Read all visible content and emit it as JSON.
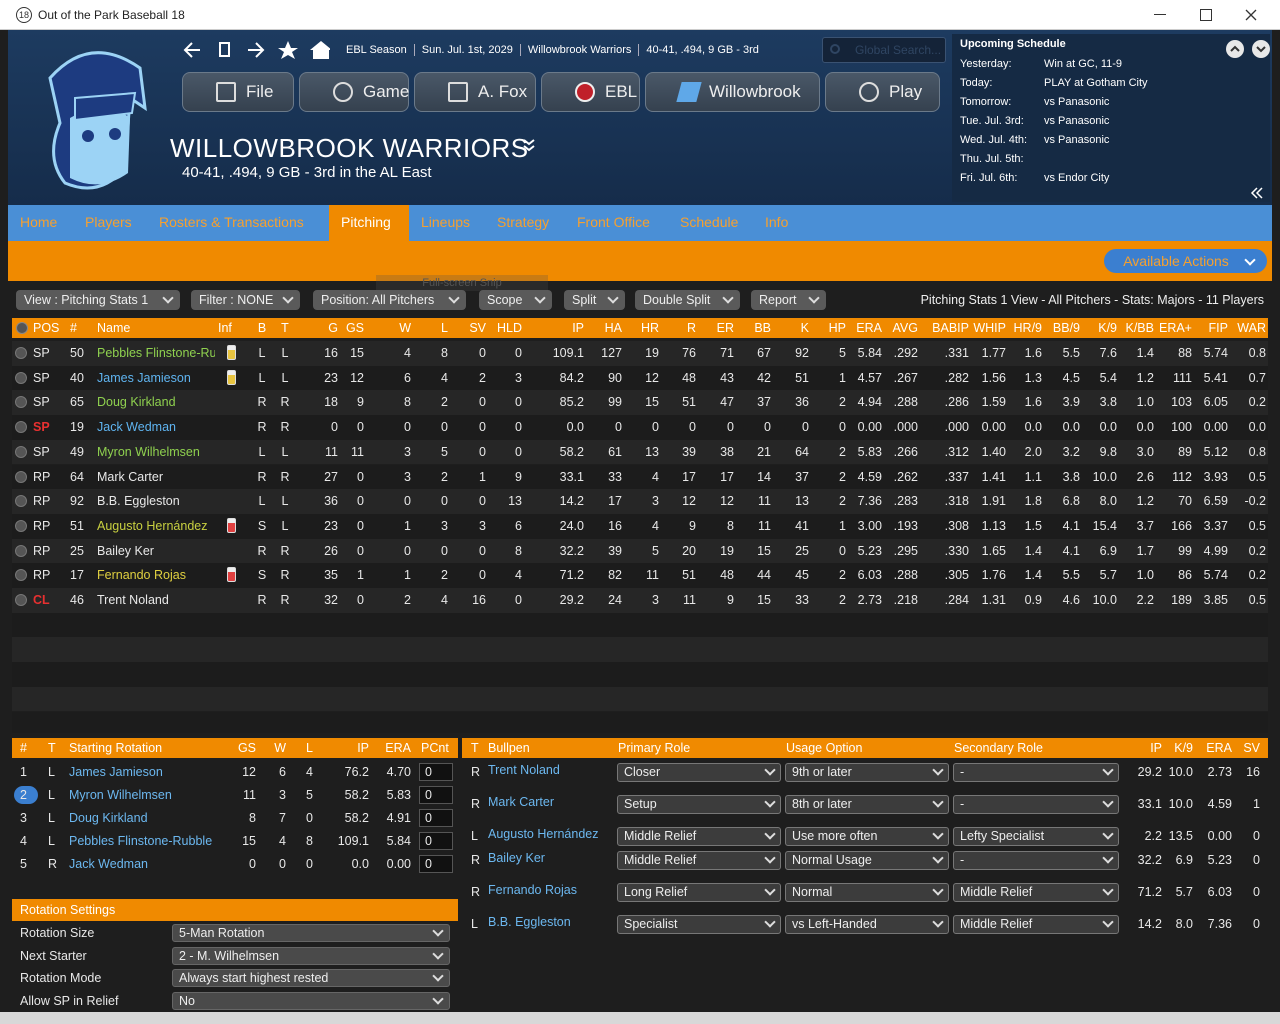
{
  "window": {
    "icon": "18",
    "title": "Out of the Park Baseball 18"
  },
  "nav": {
    "breadcrumbs": [
      "EBL Season",
      "Sun. Jul. 1st, 2029",
      "Willowbrook Warriors",
      "40-41, .494, 9 GB - 3rd"
    ],
    "search": "Global Search...",
    "menu": [
      "File",
      "Game",
      "A. Fox",
      "EBL",
      "Willowbrook",
      "Play"
    ]
  },
  "team": {
    "name": "WILLOWBROOK WARRIORS",
    "record": "40-41, .494, 9 GB - 3rd in the AL East"
  },
  "schedule": {
    "title": "Upcoming Schedule",
    "rows": [
      [
        "Yesterday:",
        "Win at GC, 11-9"
      ],
      [
        "Today:",
        "PLAY at Gotham City"
      ],
      [
        "Tomorrow:",
        "vs Panasonic"
      ],
      [
        "Tue. Jul. 3rd:",
        "vs Panasonic"
      ],
      [
        "Wed. Jul. 4th:",
        "vs Panasonic"
      ],
      [
        "Thu. Jul. 5th:"
      ],
      [
        "Fri. Jul. 6th:",
        "vs Endor City"
      ]
    ]
  },
  "tabs": {
    "items": [
      "Home",
      "Players",
      "Rosters & Transactions",
      "Pitching",
      "Lineups",
      "Strategy",
      "Front Office",
      "Schedule",
      "Info"
    ],
    "active": 3
  },
  "actions": "Available Actions",
  "overlay": "Full-screen Snip",
  "filters": {
    "items": [
      "View : Pitching Stats 1",
      "Filter : NONE",
      "Position: All Pitchers",
      "Scope",
      "Split",
      "Double Split",
      "Report"
    ],
    "summary": "Pitching Stats 1 View - All Pitchers - Stats: Majors - 11 Players"
  },
  "stats": {
    "columns": [
      "POS",
      "#",
      "Name",
      "Inf",
      "B",
      "T",
      "G",
      "GS",
      "W",
      "L",
      "SV",
      "HLD",
      "IP",
      "HA",
      "HR",
      "R",
      "ER",
      "BB",
      "K",
      "HP",
      "ERA",
      "AVG",
      "BABIP",
      "WHIP",
      "HR/9",
      "BB/9",
      "K/9",
      "K/BB",
      "ERA+",
      "FIP",
      "WAR"
    ],
    "rows": [
      {
        "cells": [
          "SP",
          "50",
          "Pebbles Flinstone-Rubble",
          "L",
          "L",
          "16",
          "15",
          "4",
          "8",
          "0",
          "0",
          "109.1",
          "127",
          "19",
          "76",
          "71",
          "67",
          "92",
          "5",
          "5.84",
          ".292",
          ".331",
          "1.77",
          "1.6",
          "5.5",
          "7.6",
          "1.4",
          "88",
          "5.74",
          "0.8"
        ],
        "name_color": "#8fd14f",
        "inf_color": "#e8c440"
      },
      {
        "cells": [
          "SP",
          "40",
          "James Jamieson",
          "L",
          "L",
          "23",
          "12",
          "6",
          "4",
          "2",
          "3",
          "84.2",
          "90",
          "12",
          "48",
          "43",
          "42",
          "51",
          "1",
          "4.57",
          ".267",
          ".282",
          "1.56",
          "1.3",
          "4.5",
          "5.4",
          "1.2",
          "111",
          "5.41",
          "0.7"
        ],
        "name_color": "#5fb4f0",
        "inf_color": "#e8c440"
      },
      {
        "cells": [
          "SP",
          "65",
          "Doug Kirkland",
          "R",
          "R",
          "18",
          "9",
          "8",
          "2",
          "0",
          "0",
          "85.2",
          "99",
          "15",
          "51",
          "47",
          "37",
          "36",
          "2",
          "4.94",
          ".288",
          ".286",
          "1.59",
          "1.6",
          "3.9",
          "3.8",
          "1.0",
          "103",
          "6.05",
          "0.2"
        ],
        "name_color": "#8fd14f"
      },
      {
        "cells": [
          "SP",
          "19",
          "Jack Wedman",
          "R",
          "R",
          "0",
          "0",
          "0",
          "0",
          "0",
          "0",
          "0.0",
          "0",
          "0",
          "0",
          "0",
          "0",
          "0",
          "0",
          "0.00",
          ".000",
          ".000",
          "0.00",
          "0.0",
          "0.0",
          "0.0",
          "0.0",
          "100",
          "0.00",
          "0.0"
        ],
        "name_color": "#5fb4f0",
        "pos_color": "#e83030"
      },
      {
        "cells": [
          "SP",
          "49",
          "Myron Wilhelmsen",
          "L",
          "L",
          "11",
          "11",
          "3",
          "5",
          "0",
          "0",
          "58.2",
          "61",
          "13",
          "39",
          "38",
          "21",
          "64",
          "2",
          "5.83",
          ".266",
          ".312",
          "1.40",
          "2.0",
          "3.2",
          "9.8",
          "3.0",
          "89",
          "5.12",
          "0.8"
        ],
        "name_color": "#8fd14f"
      },
      {
        "cells": [
          "RP",
          "64",
          "Mark Carter",
          "R",
          "R",
          "27",
          "0",
          "3",
          "2",
          "1",
          "9",
          "33.1",
          "33",
          "4",
          "17",
          "17",
          "14",
          "37",
          "2",
          "4.59",
          ".262",
          ".337",
          "1.41",
          "1.1",
          "3.8",
          "10.0",
          "2.6",
          "112",
          "3.93",
          "0.5"
        ]
      },
      {
        "cells": [
          "RP",
          "92",
          "B.B. Eggleston",
          "L",
          "L",
          "36",
          "0",
          "0",
          "0",
          "0",
          "13",
          "14.2",
          "17",
          "3",
          "12",
          "12",
          "11",
          "13",
          "2",
          "7.36",
          ".283",
          ".318",
          "1.91",
          "1.8",
          "6.8",
          "8.0",
          "1.2",
          "70",
          "6.59",
          "-0.2"
        ]
      },
      {
        "cells": [
          "RP",
          "51",
          "Augusto Hernández",
          "S",
          "L",
          "23",
          "0",
          "1",
          "3",
          "3",
          "6",
          "24.0",
          "16",
          "4",
          "9",
          "8",
          "11",
          "41",
          "1",
          "3.00",
          ".193",
          ".308",
          "1.13",
          "1.5",
          "4.1",
          "15.4",
          "3.7",
          "166",
          "3.37",
          "0.5"
        ],
        "name_color": "#c8d040",
        "inf_color": "#e04040"
      },
      {
        "cells": [
          "RP",
          "25",
          "Bailey Ker",
          "R",
          "R",
          "26",
          "0",
          "0",
          "0",
          "0",
          "8",
          "32.2",
          "39",
          "5",
          "20",
          "19",
          "15",
          "25",
          "0",
          "5.23",
          ".295",
          ".330",
          "1.65",
          "1.4",
          "4.1",
          "6.9",
          "1.7",
          "99",
          "4.99",
          "0.2"
        ]
      },
      {
        "cells": [
          "RP",
          "17",
          "Fernando Rojas",
          "S",
          "R",
          "35",
          "1",
          "1",
          "2",
          "0",
          "4",
          "71.2",
          "82",
          "11",
          "51",
          "48",
          "44",
          "45",
          "2",
          "6.03",
          ".288",
          ".305",
          "1.76",
          "1.4",
          "5.5",
          "5.7",
          "1.0",
          "86",
          "5.74",
          "0.2"
        ],
        "name_color": "#e0d040",
        "inf_color": "#e04040"
      },
      {
        "cells": [
          "CL",
          "46",
          "Trent Noland",
          "R",
          "R",
          "32",
          "0",
          "2",
          "4",
          "16",
          "0",
          "29.2",
          "24",
          "3",
          "11",
          "9",
          "15",
          "33",
          "2",
          "2.73",
          ".218",
          ".284",
          "1.31",
          "0.9",
          "4.6",
          "10.0",
          "2.2",
          "189",
          "3.85",
          "0.5"
        ],
        "pos_color": "#e83030"
      }
    ]
  },
  "rotation": {
    "columns": [
      "#",
      "T",
      "Starting Rotation",
      "GS",
      "W",
      "L",
      "IP",
      "ERA",
      "PCnt"
    ],
    "rows": [
      [
        "1",
        "L",
        "James Jamieson",
        "12",
        "6",
        "4",
        "76.2",
        "4.70",
        "0"
      ],
      [
        "2",
        "L",
        "Myron Wilhelmsen",
        "11",
        "3",
        "5",
        "58.2",
        "5.83",
        "0"
      ],
      [
        "3",
        "L",
        "Doug Kirkland",
        "8",
        "7",
        "0",
        "58.2",
        "4.91",
        "0"
      ],
      [
        "4",
        "L",
        "Pebbles Flinstone-Rubble",
        "15",
        "4",
        "8",
        "109.1",
        "5.84",
        "0"
      ],
      [
        "5",
        "R",
        "Jack Wedman",
        "0",
        "0",
        "0",
        "0.0",
        "0.00",
        "0"
      ]
    ],
    "selected": 1
  },
  "settings": {
    "title": "Rotation Settings",
    "rows": [
      [
        "Rotation Size",
        "5-Man Rotation"
      ],
      [
        "Next Starter",
        "2 - M. Wilhelmsen"
      ],
      [
        "Rotation Mode",
        "Always start highest rested"
      ],
      [
        "Allow SP in Relief",
        "No"
      ]
    ]
  },
  "bullpen": {
    "columns": [
      "T",
      "Bullpen",
      "Primary Role",
      "Usage Option",
      "Secondary Role",
      "IP",
      "K/9",
      "ERA",
      "SV"
    ],
    "rows": [
      [
        "R",
        "Trent Noland",
        "Closer",
        "9th or later",
        "-",
        "29.2",
        "10.0",
        "2.73",
        "16"
      ],
      [
        "R",
        "Mark Carter",
        "Setup",
        "8th or later",
        "-",
        "33.1",
        "10.0",
        "4.59",
        "1"
      ],
      [
        "L",
        "Augusto Hernández",
        "Middle Relief",
        "Use more often",
        "Lefty Specialist",
        "2.2",
        "13.5",
        "0.00",
        "0"
      ],
      [
        "R",
        "Bailey Ker",
        "Middle Relief",
        "Normal Usage",
        "-",
        "32.2",
        "6.9",
        "5.23",
        "0"
      ],
      [
        "R",
        "Fernando Rojas",
        "Long Relief",
        "Normal",
        "Middle Relief",
        "71.2",
        "5.7",
        "6.03",
        "0"
      ],
      [
        "L",
        "B.B. Eggleston",
        "Specialist",
        "vs Left-Handed",
        "Middle Relief",
        "14.2",
        "8.0",
        "7.36",
        "0"
      ]
    ]
  }
}
